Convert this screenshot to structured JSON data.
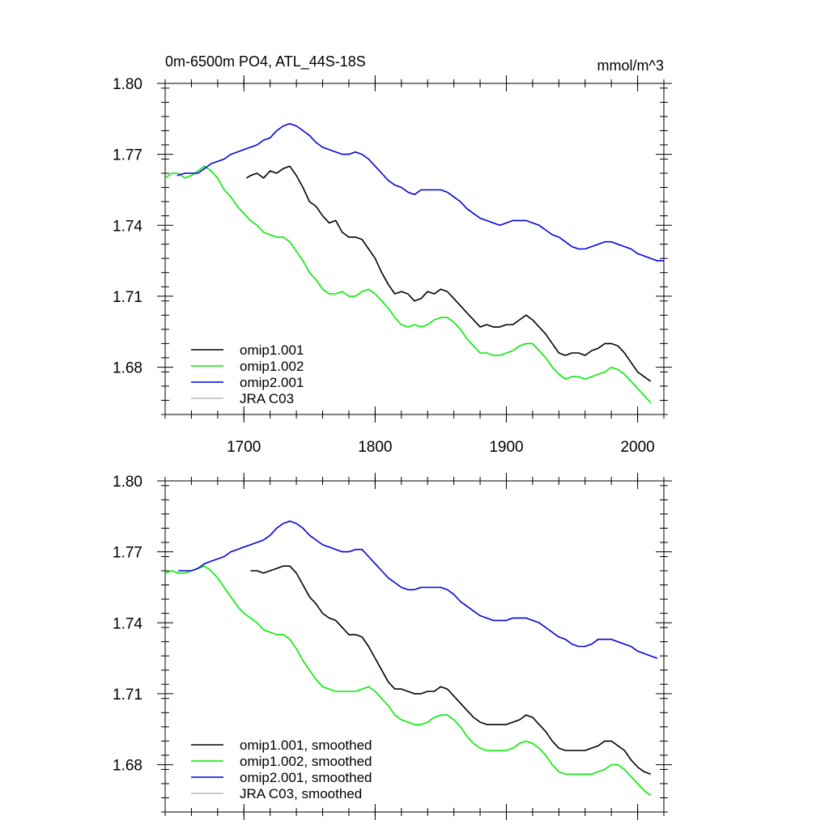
{
  "figure": {
    "title": "0m-6500m PO4, ATL_44S-18S",
    "units": "mmol/m^3"
  },
  "chart_data": [
    {
      "type": "line",
      "xlim": [
        1640,
        2020
      ],
      "ylim": [
        1.66,
        1.8
      ],
      "yticks": [
        1.8,
        1.77,
        1.74,
        1.71,
        1.68
      ],
      "ytick_labels": [
        "1.80",
        "1.77",
        "1.74",
        "1.71",
        "1.68"
      ],
      "xticks": [
        1700,
        1800,
        1900,
        2000
      ],
      "xtick_labels": [
        "1700",
        "1800",
        "1900",
        "2000"
      ],
      "xtick_minor_step": 20,
      "ytick_minor_step": 0.006,
      "grid": false,
      "legend_position": "bottom-left",
      "series": [
        {
          "name": "omip1.001",
          "color": "#000000",
          "x": [
            1702,
            1705,
            1710,
            1715,
            1720,
            1725,
            1730,
            1735,
            1740,
            1745,
            1750,
            1755,
            1760,
            1765,
            1770,
            1775,
            1780,
            1785,
            1790,
            1795,
            1800,
            1805,
            1810,
            1815,
            1820,
            1825,
            1830,
            1835,
            1840,
            1845,
            1850,
            1855,
            1860,
            1865,
            1870,
            1875,
            1880,
            1885,
            1890,
            1895,
            1900,
            1905,
            1910,
            1915,
            1920,
            1925,
            1930,
            1935,
            1940,
            1945,
            1950,
            1955,
            1960,
            1965,
            1970,
            1975,
            1980,
            1985,
            1990,
            1995,
            2000,
            2005,
            2010
          ],
          "y": [
            1.76,
            1.761,
            1.762,
            1.76,
            1.763,
            1.762,
            1.764,
            1.765,
            1.761,
            1.756,
            1.75,
            1.748,
            1.744,
            1.741,
            1.742,
            1.737,
            1.735,
            1.735,
            1.734,
            1.73,
            1.726,
            1.72,
            1.715,
            1.711,
            1.712,
            1.711,
            1.708,
            1.709,
            1.712,
            1.711,
            1.713,
            1.712,
            1.709,
            1.706,
            1.703,
            1.7,
            1.697,
            1.698,
            1.697,
            1.697,
            1.698,
            1.698,
            1.7,
            1.702,
            1.7,
            1.697,
            1.694,
            1.69,
            1.686,
            1.685,
            1.686,
            1.686,
            1.685,
            1.687,
            1.688,
            1.69,
            1.69,
            1.689,
            1.686,
            1.682,
            1.678,
            1.676,
            1.674
          ]
        },
        {
          "name": "omip1.002",
          "color": "#00ee00",
          "x": [
            1640,
            1645,
            1650,
            1655,
            1660,
            1665,
            1670,
            1675,
            1680,
            1685,
            1690,
            1695,
            1700,
            1705,
            1710,
            1715,
            1720,
            1725,
            1730,
            1735,
            1740,
            1745,
            1750,
            1755,
            1760,
            1765,
            1770,
            1775,
            1780,
            1785,
            1790,
            1795,
            1800,
            1805,
            1810,
            1815,
            1820,
            1825,
            1830,
            1835,
            1840,
            1845,
            1850,
            1855,
            1860,
            1865,
            1870,
            1875,
            1880,
            1885,
            1890,
            1895,
            1900,
            1905,
            1910,
            1915,
            1920,
            1925,
            1930,
            1935,
            1940,
            1945,
            1950,
            1955,
            1960,
            1965,
            1970,
            1975,
            1980,
            1985,
            1990,
            1995,
            2000,
            2005,
            2010
          ],
          "y": [
            1.76,
            1.762,
            1.762,
            1.76,
            1.761,
            1.763,
            1.765,
            1.763,
            1.76,
            1.755,
            1.752,
            1.748,
            1.745,
            1.742,
            1.74,
            1.737,
            1.736,
            1.735,
            1.735,
            1.733,
            1.729,
            1.725,
            1.72,
            1.717,
            1.713,
            1.711,
            1.711,
            1.712,
            1.71,
            1.71,
            1.712,
            1.713,
            1.711,
            1.708,
            1.705,
            1.701,
            1.698,
            1.697,
            1.698,
            1.697,
            1.698,
            1.7,
            1.701,
            1.701,
            1.699,
            1.696,
            1.692,
            1.689,
            1.686,
            1.686,
            1.685,
            1.685,
            1.686,
            1.687,
            1.689,
            1.69,
            1.69,
            1.687,
            1.684,
            1.68,
            1.677,
            1.675,
            1.676,
            1.676,
            1.675,
            1.676,
            1.677,
            1.678,
            1.68,
            1.679,
            1.677,
            1.674,
            1.671,
            1.668,
            1.665
          ]
        },
        {
          "name": "omip2.001",
          "color": "#0000dd",
          "x": [
            1649,
            1655,
            1660,
            1665,
            1670,
            1675,
            1680,
            1685,
            1690,
            1695,
            1700,
            1705,
            1710,
            1715,
            1720,
            1725,
            1730,
            1735,
            1740,
            1745,
            1750,
            1755,
            1760,
            1765,
            1770,
            1775,
            1780,
            1785,
            1790,
            1795,
            1800,
            1805,
            1810,
            1815,
            1820,
            1825,
            1830,
            1835,
            1840,
            1845,
            1850,
            1855,
            1860,
            1865,
            1870,
            1875,
            1880,
            1885,
            1890,
            1895,
            1900,
            1905,
            1910,
            1915,
            1920,
            1925,
            1930,
            1935,
            1940,
            1945,
            1950,
            1955,
            1960,
            1965,
            1970,
            1975,
            1980,
            1985,
            1990,
            1995,
            2000,
            2005,
            2010,
            2015,
            2020
          ],
          "y": [
            1.761,
            1.762,
            1.762,
            1.762,
            1.764,
            1.766,
            1.767,
            1.768,
            1.77,
            1.771,
            1.772,
            1.773,
            1.774,
            1.776,
            1.777,
            1.78,
            1.782,
            1.783,
            1.782,
            1.78,
            1.778,
            1.775,
            1.773,
            1.772,
            1.771,
            1.77,
            1.77,
            1.771,
            1.77,
            1.768,
            1.765,
            1.762,
            1.759,
            1.757,
            1.756,
            1.754,
            1.753,
            1.755,
            1.755,
            1.755,
            1.755,
            1.754,
            1.752,
            1.75,
            1.747,
            1.745,
            1.743,
            1.742,
            1.741,
            1.74,
            1.741,
            1.742,
            1.742,
            1.742,
            1.741,
            1.74,
            1.738,
            1.736,
            1.735,
            1.733,
            1.731,
            1.73,
            1.73,
            1.731,
            1.732,
            1.733,
            1.733,
            1.732,
            1.731,
            1.73,
            1.728,
            1.727,
            1.726,
            1.725,
            1.725
          ]
        },
        {
          "name": "JRA C03",
          "color": "#bbbbbb",
          "x": [],
          "y": []
        }
      ]
    },
    {
      "type": "line",
      "xlim": [
        1640,
        2020
      ],
      "ylim": [
        1.66,
        1.8
      ],
      "yticks": [
        1.8,
        1.77,
        1.74,
        1.71,
        1.68
      ],
      "ytick_labels": [
        "1.80",
        "1.77",
        "1.74",
        "1.71",
        "1.68"
      ],
      "xticks": [
        1700,
        1800,
        1900,
        2000
      ],
      "xtick_labels": [],
      "xtick_minor_step": 20,
      "ytick_minor_step": 0.006,
      "grid": false,
      "legend_position": "bottom-left",
      "series": [
        {
          "name": "omip1.001, smoothed",
          "color": "#000000",
          "x": [
            1705,
            1710,
            1715,
            1720,
            1725,
            1730,
            1735,
            1740,
            1745,
            1750,
            1755,
            1760,
            1765,
            1770,
            1775,
            1780,
            1785,
            1790,
            1795,
            1800,
            1805,
            1810,
            1815,
            1820,
            1825,
            1830,
            1835,
            1840,
            1845,
            1850,
            1855,
            1860,
            1865,
            1870,
            1875,
            1880,
            1885,
            1890,
            1895,
            1900,
            1905,
            1910,
            1915,
            1920,
            1925,
            1930,
            1935,
            1940,
            1945,
            1950,
            1955,
            1960,
            1965,
            1970,
            1975,
            1980,
            1985,
            1990,
            1995,
            2000,
            2005,
            2010
          ],
          "y": [
            1.762,
            1.762,
            1.761,
            1.762,
            1.763,
            1.764,
            1.764,
            1.761,
            1.756,
            1.751,
            1.748,
            1.744,
            1.742,
            1.741,
            1.738,
            1.735,
            1.735,
            1.734,
            1.73,
            1.725,
            1.72,
            1.715,
            1.712,
            1.712,
            1.711,
            1.71,
            1.71,
            1.711,
            1.711,
            1.713,
            1.712,
            1.709,
            1.706,
            1.703,
            1.7,
            1.698,
            1.697,
            1.697,
            1.697,
            1.697,
            1.698,
            1.699,
            1.701,
            1.7,
            1.697,
            1.694,
            1.69,
            1.687,
            1.686,
            1.686,
            1.686,
            1.686,
            1.687,
            1.688,
            1.69,
            1.69,
            1.688,
            1.686,
            1.682,
            1.679,
            1.677,
            1.676
          ]
        },
        {
          "name": "omip1.002, smoothed",
          "color": "#00ee00",
          "x": [
            1640,
            1645,
            1650,
            1655,
            1660,
            1665,
            1670,
            1675,
            1680,
            1685,
            1690,
            1695,
            1700,
            1705,
            1710,
            1715,
            1720,
            1725,
            1730,
            1735,
            1740,
            1745,
            1750,
            1755,
            1760,
            1765,
            1770,
            1775,
            1780,
            1785,
            1790,
            1795,
            1800,
            1805,
            1810,
            1815,
            1820,
            1825,
            1830,
            1835,
            1840,
            1845,
            1850,
            1855,
            1860,
            1865,
            1870,
            1875,
            1880,
            1885,
            1890,
            1895,
            1900,
            1905,
            1910,
            1915,
            1920,
            1925,
            1930,
            1935,
            1940,
            1945,
            1950,
            1955,
            1960,
            1965,
            1970,
            1975,
            1980,
            1985,
            1990,
            1995,
            2000,
            2005,
            2010
          ],
          "y": [
            1.761,
            1.762,
            1.761,
            1.761,
            1.762,
            1.763,
            1.764,
            1.762,
            1.759,
            1.755,
            1.751,
            1.747,
            1.744,
            1.742,
            1.74,
            1.737,
            1.736,
            1.735,
            1.735,
            1.733,
            1.729,
            1.724,
            1.72,
            1.716,
            1.713,
            1.712,
            1.711,
            1.711,
            1.711,
            1.711,
            1.712,
            1.713,
            1.711,
            1.708,
            1.705,
            1.701,
            1.699,
            1.698,
            1.697,
            1.697,
            1.698,
            1.7,
            1.701,
            1.701,
            1.699,
            1.696,
            1.692,
            1.689,
            1.687,
            1.686,
            1.686,
            1.686,
            1.686,
            1.687,
            1.689,
            1.69,
            1.689,
            1.687,
            1.684,
            1.68,
            1.677,
            1.676,
            1.676,
            1.676,
            1.676,
            1.676,
            1.677,
            1.678,
            1.68,
            1.68,
            1.678,
            1.675,
            1.672,
            1.669,
            1.667
          ]
        },
        {
          "name": "omip2.001, smoothed",
          "color": "#0000dd",
          "x": [
            1650,
            1655,
            1660,
            1665,
            1670,
            1675,
            1680,
            1685,
            1690,
            1695,
            1700,
            1705,
            1710,
            1715,
            1720,
            1725,
            1730,
            1735,
            1740,
            1745,
            1750,
            1755,
            1760,
            1765,
            1770,
            1775,
            1780,
            1785,
            1790,
            1795,
            1800,
            1805,
            1810,
            1815,
            1820,
            1825,
            1830,
            1835,
            1840,
            1845,
            1850,
            1855,
            1860,
            1865,
            1870,
            1875,
            1880,
            1885,
            1890,
            1895,
            1900,
            1905,
            1910,
            1915,
            1920,
            1925,
            1930,
            1935,
            1940,
            1945,
            1950,
            1955,
            1960,
            1965,
            1970,
            1975,
            1980,
            1985,
            1990,
            1995,
            2000,
            2005,
            2010,
            2015
          ],
          "y": [
            1.762,
            1.762,
            1.762,
            1.763,
            1.765,
            1.766,
            1.767,
            1.768,
            1.77,
            1.771,
            1.772,
            1.773,
            1.774,
            1.775,
            1.777,
            1.78,
            1.782,
            1.783,
            1.782,
            1.78,
            1.777,
            1.775,
            1.773,
            1.772,
            1.771,
            1.77,
            1.77,
            1.771,
            1.771,
            1.768,
            1.765,
            1.762,
            1.759,
            1.757,
            1.755,
            1.754,
            1.754,
            1.755,
            1.755,
            1.755,
            1.755,
            1.754,
            1.752,
            1.749,
            1.747,
            1.745,
            1.743,
            1.742,
            1.741,
            1.741,
            1.741,
            1.742,
            1.742,
            1.742,
            1.741,
            1.74,
            1.738,
            1.736,
            1.734,
            1.733,
            1.731,
            1.73,
            1.73,
            1.731,
            1.733,
            1.733,
            1.733,
            1.732,
            1.731,
            1.73,
            1.728,
            1.727,
            1.726,
            1.725
          ]
        },
        {
          "name": "JRA C03, smoothed",
          "color": "#bbbbbb",
          "x": [],
          "y": []
        }
      ]
    }
  ]
}
